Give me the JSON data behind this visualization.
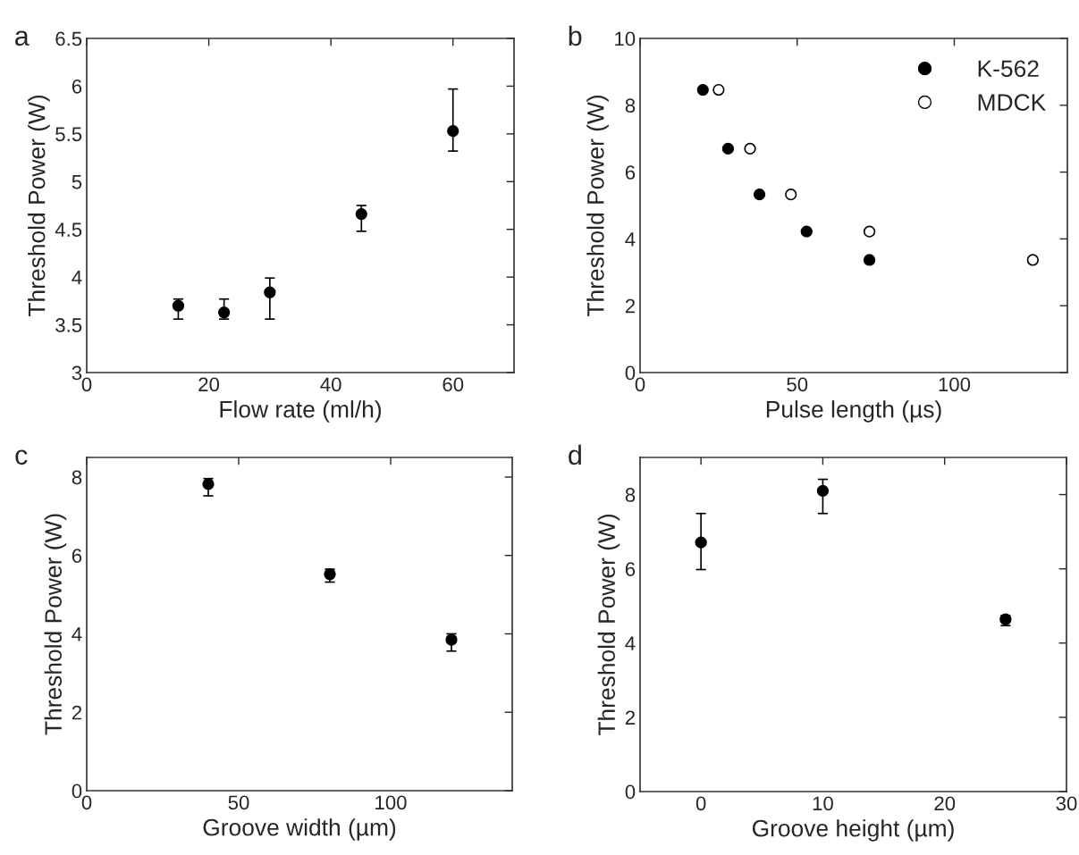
{
  "chart_data": [
    {
      "type": "scatter",
      "annotations": [
        "a"
      ],
      "xlabel": "Flow rate (ml/h)",
      "ylabel": "Threshold Power (W)",
      "xlim": [
        0,
        70
      ],
      "xticks": [
        0,
        20,
        40,
        60
      ],
      "ylim": [
        3,
        6.5
      ],
      "yticks": [
        3,
        3.5,
        4,
        4.5,
        5,
        5.5,
        6,
        6.5
      ],
      "marker": "circle",
      "grid": false,
      "legend": false,
      "series": [
        {
          "color": "#000000",
          "x": [
            15,
            22.5,
            30,
            45,
            60
          ],
          "values": [
            3.7,
            3.63,
            3.84,
            4.66,
            5.53
          ],
          "errors": [
            [
              3.56,
              3.77
            ],
            [
              3.56,
              3.77
            ],
            [
              3.56,
              3.99
            ],
            [
              4.48,
              4.75
            ],
            [
              5.32,
              5.97
            ]
          ]
        }
      ]
    },
    {
      "type": "scatter",
      "annotations": [
        "b"
      ],
      "xlabel": "Pulse length (µs)",
      "ylabel": "Threshold Power (W)",
      "xlim": [
        0,
        136
      ],
      "xticks": [
        0,
        50,
        100
      ],
      "ylim": [
        0,
        10
      ],
      "yticks": [
        0,
        2,
        4,
        6,
        8,
        10
      ],
      "marker": "circle",
      "grid": false,
      "legend": "top right",
      "series": [
        {
          "name": "K-562",
          "color": "#000000",
          "x": [
            20,
            28,
            38,
            53,
            73
          ],
          "values": [
            8.46,
            6.7,
            5.33,
            4.22,
            3.37
          ]
        },
        {
          "name": "MDCK",
          "color": "#ffffff",
          "x": [
            25,
            35,
            48,
            73,
            125
          ],
          "values": [
            8.46,
            6.7,
            5.33,
            4.22,
            3.37
          ]
        }
      ]
    },
    {
      "type": "scatter",
      "annotations": [
        "c"
      ],
      "xlabel": "Groove width (µm)",
      "ylabel": "Threshold Power (W)",
      "xlim": [
        0,
        140
      ],
      "xticks": [
        0,
        50,
        100
      ],
      "ylim": [
        0,
        8.5
      ],
      "yticks": [
        0,
        2,
        4,
        6,
        8
      ],
      "marker": "circle",
      "grid": false,
      "legend": false,
      "series": [
        {
          "color": "#000000",
          "x": [
            40,
            80,
            120
          ],
          "values": [
            7.82,
            5.52,
            3.85
          ],
          "errors": [
            [
              7.52,
              7.96
            ],
            [
              5.32,
              5.65
            ],
            [
              3.56,
              4.0
            ]
          ]
        }
      ]
    },
    {
      "type": "scatter",
      "annotations": [
        "d"
      ],
      "xlabel": "Groove height (µm)",
      "ylabel": "Threshold Power (W)",
      "xlim": [
        -5,
        30
      ],
      "xticks": [
        0,
        10,
        20,
        30
      ],
      "ylim": [
        0,
        9
      ],
      "yticks": [
        0,
        2,
        4,
        6,
        8
      ],
      "marker": "circle",
      "grid": false,
      "legend": false,
      "series": [
        {
          "color": "#000000",
          "x": [
            0,
            10,
            25
          ],
          "values": [
            6.71,
            8.1,
            4.64
          ],
          "errors": [
            [
              5.98,
              7.49
            ],
            [
              7.49,
              8.41
            ],
            [
              4.47,
              4.74
            ]
          ]
        }
      ]
    }
  ]
}
